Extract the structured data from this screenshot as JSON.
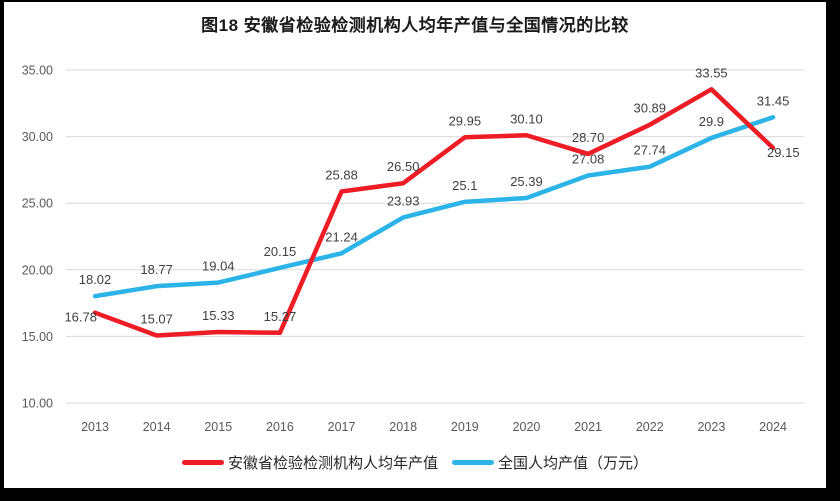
{
  "frame": {
    "background": "#000000",
    "chart_background": "#ffffff"
  },
  "chart_data": {
    "type": "line",
    "title": "图18 安徽省检验检测机构人均年产值与全国情况的比较",
    "categories": [
      "2013",
      "2014",
      "2015",
      "2016",
      "2017",
      "2018",
      "2019",
      "2020",
      "2021",
      "2022",
      "2023",
      "2024"
    ],
    "series": [
      {
        "name": "安徽省检验检测机构人均年产值",
        "color": "#ee1c25",
        "values": [
          16.78,
          15.07,
          15.33,
          15.27,
          25.88,
          26.5,
          29.95,
          30.1,
          28.7,
          30.89,
          33.55,
          29.15
        ],
        "labels": [
          "16.78",
          "15.07",
          "15.33",
          "15.27",
          "25.88",
          "26.50",
          "29.95",
          "30.10",
          "28.70",
          "30.89",
          "33.55",
          "29.15"
        ]
      },
      {
        "name": "全国人均产值（万元）",
        "color": "#2cb3e8",
        "values": [
          18.02,
          18.77,
          19.04,
          20.15,
          21.24,
          23.93,
          25.1,
          25.39,
          27.08,
          27.74,
          29.9,
          31.45
        ],
        "labels": [
          "18.02",
          "18.77",
          "19.04",
          "20.15",
          "21.24",
          "23.93",
          "25.1",
          "25.39",
          "27.08",
          "27.74",
          "29.9",
          "31.45"
        ]
      }
    ],
    "ylim": [
      10,
      35
    ],
    "yticks": [
      "10.00",
      "15.00",
      "20.00",
      "25.00",
      "30.00",
      "35.00"
    ],
    "grid": true,
    "legend_position": "bottom",
    "colors": {
      "grid": "#d9d9d9",
      "axis_text": "#595959",
      "label_text": "#404040",
      "legend_text": "#262626",
      "title_text": "#1a1a1a"
    }
  }
}
